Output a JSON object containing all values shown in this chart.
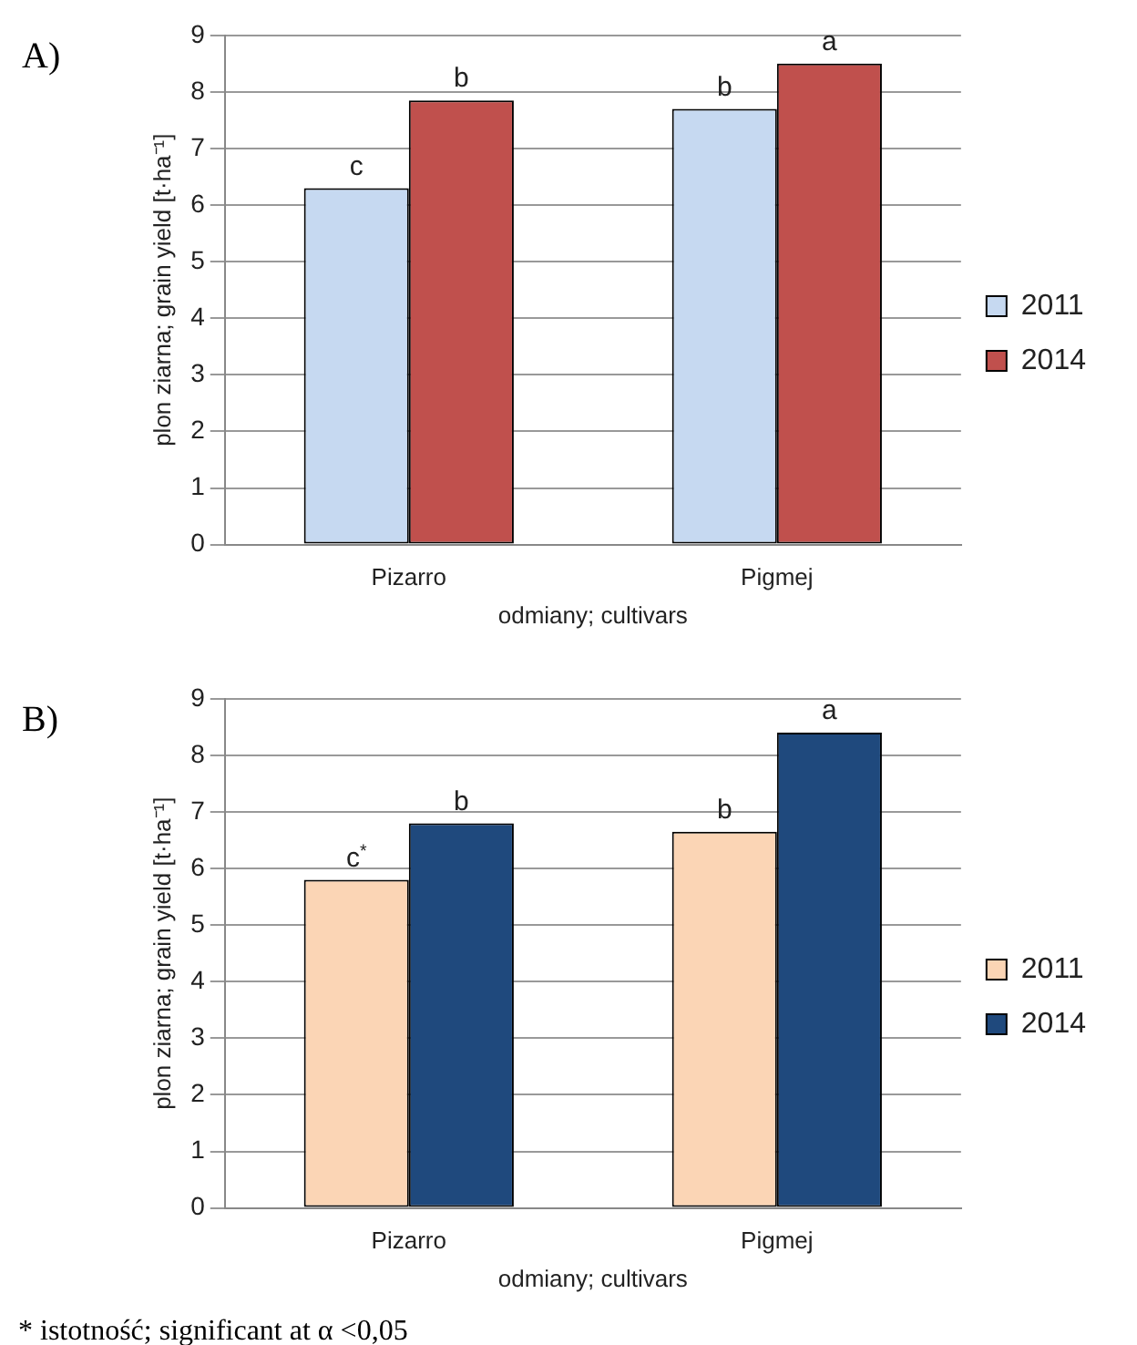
{
  "chart_data": [
    {
      "type": "bar",
      "title": "A)",
      "categories": [
        "Pizarro",
        "Pigmej"
      ],
      "xlabel": "odmiany; cultivars",
      "ylabel": "plon ziarna; grain yield [t·ha⁻¹]",
      "series": [
        {
          "name": "2011",
          "color": "#c6d9f1",
          "values": [
            6.3,
            7.7
          ]
        },
        {
          "name": "2014",
          "color": "#c0504d",
          "values": [
            7.85,
            8.5
          ]
        }
      ],
      "ylim": [
        0,
        9
      ],
      "yticks": [
        0,
        1,
        2,
        3,
        4,
        5,
        6,
        7,
        8,
        9
      ],
      "grid": "y",
      "legend": "right",
      "annotations": [
        {
          "text": "c",
          "x": "Pizarro",
          "y": 6.3
        },
        {
          "text": "b",
          "x": "Pizarro",
          "y": 7.85
        },
        {
          "text": "b",
          "x": "Pigmej",
          "y": 7.7
        },
        {
          "text": "a",
          "x": "Pigmej",
          "y": 8.5
        }
      ]
    },
    {
      "type": "bar",
      "title": "B)",
      "categories": [
        "Pizarro",
        "Pigmej"
      ],
      "xlabel": "odmiany; cultivars",
      "ylabel": "plon ziarna; grain yield [t·ha⁻¹]",
      "series": [
        {
          "name": "2011",
          "color": "#fbd5b5",
          "values": [
            5.8,
            6.65
          ]
        },
        {
          "name": "2014",
          "color": "#1f497d",
          "values": [
            6.8,
            8.4
          ]
        }
      ],
      "ylim": [
        0,
        9
      ],
      "yticks": [
        0,
        1,
        2,
        3,
        4,
        5,
        6,
        7,
        8,
        9
      ],
      "grid": "y",
      "legend": "right",
      "annotations": [
        {
          "text": "c$^{*}$",
          "x": "Pizarro",
          "y": 5.8
        },
        {
          "text": "b",
          "x": "Pizarro",
          "y": 6.8
        },
        {
          "text": "b",
          "x": "Pigmej",
          "y": 6.65
        },
        {
          "text": "a",
          "x": "Pigmej",
          "y": 8.4
        },
        "* istotność; significant at α <0,05"
      ]
    }
  ]
}
